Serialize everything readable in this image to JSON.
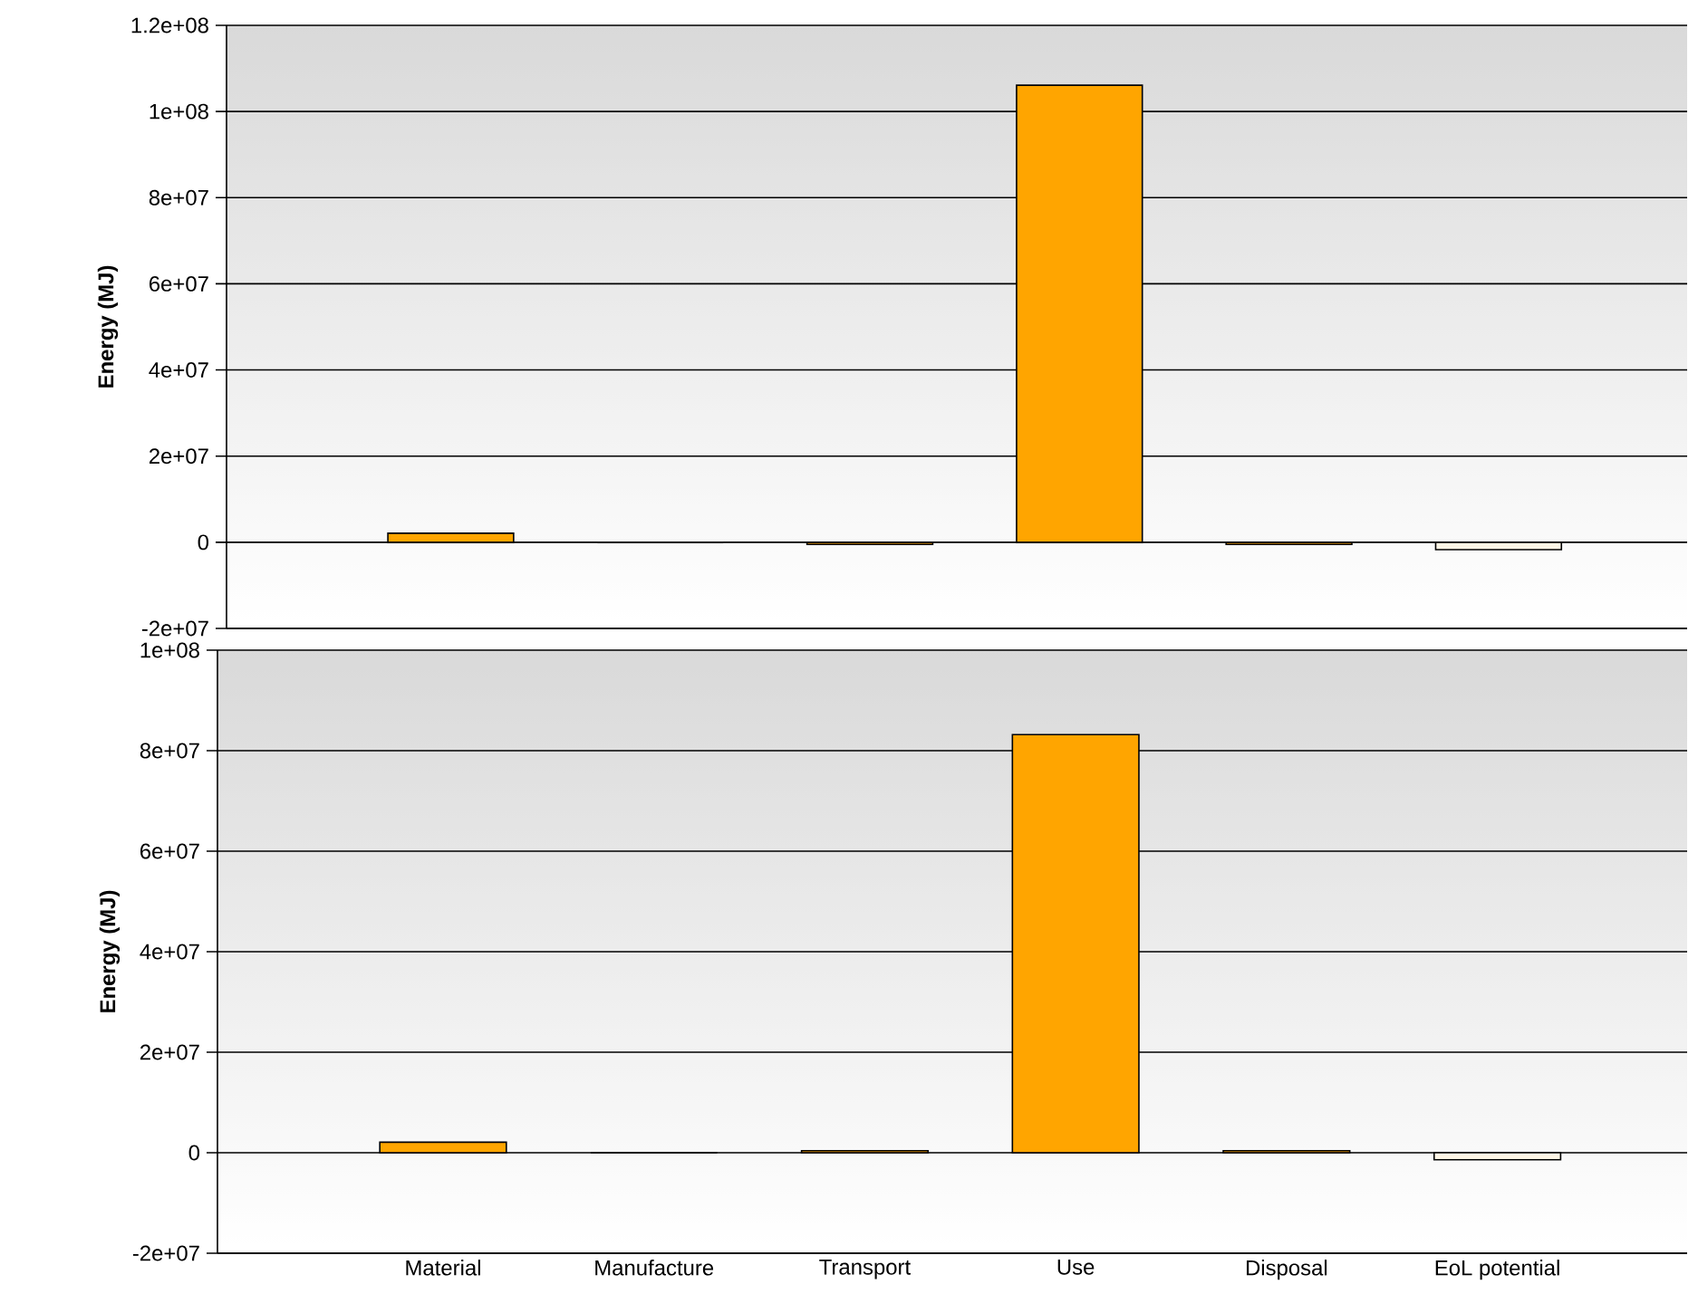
{
  "chart_data": [
    {
      "type": "bar",
      "ylabel": "Energy (MJ)",
      "categories": [
        null,
        null,
        null,
        null,
        null,
        null
      ],
      "values": [
        2100000,
        0,
        -500000,
        106100000,
        -500000,
        -1700000
      ],
      "colors": [
        "#ffa500",
        "#ffa500",
        "#ffa500",
        "#ffa500",
        "#ffa500",
        "#fff6e6"
      ],
      "ylim": [
        -20000000,
        120000000
      ],
      "yticks": [
        {
          "value": -20000000,
          "label": "-2e+07"
        },
        0,
        {
          "value": 20000000,
          "label": "2e+07"
        },
        {
          "value": 40000000,
          "label": "4e+07"
        },
        {
          "value": 60000000,
          "label": "6e+07"
        },
        {
          "value": 80000000,
          "label": "8e+07"
        },
        {
          "value": 100000000,
          "label": "1e+08"
        },
        {
          "value": 120000000,
          "label": "1.2e+08"
        }
      ],
      "grid": "y"
    },
    {
      "type": "bar",
      "ylabel": "Energy (MJ)",
      "categories": [
        "Material",
        "Manufacture",
        "Transport",
        "Use",
        "Disposal",
        "EoL potential"
      ],
      "values": [
        2100000,
        0,
        400000,
        83200000,
        400000,
        -1400000
      ],
      "colors": [
        "#ffa500",
        "#ffa500",
        "#ffa500",
        "#ffa500",
        "#ffa500",
        "#fff6e6"
      ],
      "ylim": [
        -20000000,
        100000000
      ],
      "yticks": [
        {
          "value": -20000000,
          "label": "-2e+07"
        },
        0,
        {
          "value": 20000000,
          "label": "2e+07"
        },
        {
          "value": 40000000,
          "label": "4e+07"
        },
        {
          "value": 60000000,
          "label": "6e+07"
        },
        {
          "value": 80000000,
          "label": "8e+07"
        },
        {
          "value": 100000000,
          "label": "1e+08"
        }
      ],
      "grid": "y"
    }
  ]
}
